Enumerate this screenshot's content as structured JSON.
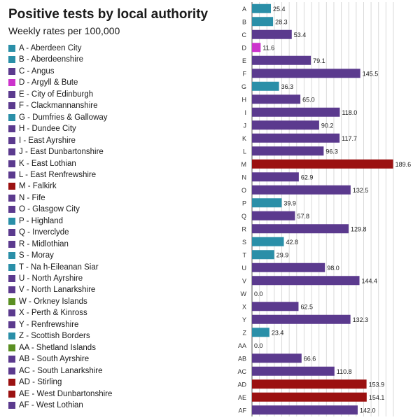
{
  "header": {
    "title": "Positive tests by local authority",
    "subtitle": "Weekly rates per 100,000"
  },
  "colors": {
    "purple": "#5b3a8e",
    "teal": "#2a8fa8",
    "magenta": "#cc33cc",
    "red": "#9b1111",
    "green": "#5a8f22",
    "gridline": "#d9d9d9",
    "axis": "#555555"
  },
  "chart_data": {
    "type": "bar",
    "orientation": "horizontal",
    "xlim": [
      0,
      190
    ],
    "grid": true,
    "categories": [
      "A",
      "B",
      "C",
      "D",
      "E",
      "F",
      "G",
      "H",
      "I",
      "J",
      "K",
      "L",
      "M",
      "N",
      "O",
      "P",
      "Q",
      "R",
      "S",
      "T",
      "U",
      "V",
      "W",
      "X",
      "Y",
      "Z",
      "AA",
      "AB",
      "AC",
      "AD",
      "AE",
      "AF"
    ],
    "values": [
      25.4,
      28.3,
      53.4,
      11.6,
      79.1,
      145.5,
      36.3,
      65.0,
      118.0,
      90.2,
      117.7,
      96.3,
      189.6,
      62.9,
      132.5,
      39.9,
      57.8,
      129.8,
      42.8,
      29.9,
      98.0,
      144.4,
      0.0,
      62.5,
      132.3,
      23.4,
      0.0,
      66.6,
      110.8,
      153.9,
      154.1,
      142.0
    ],
    "value_labels": [
      "25.4",
      "28.3",
      "53.4",
      "11.6",
      "79.1",
      "145.5",
      "36.3",
      "65.0",
      "118.0",
      "90.2",
      "117.7",
      "96.3",
      "189.6",
      "62.9",
      "132.5",
      "39.9",
      "57.8",
      "129.8",
      "42.8",
      "29.9",
      "98.0",
      "144.4",
      "0.0",
      "62.5",
      "132.3",
      "23.4",
      "0.0",
      "66.6",
      "110.8",
      "153.9",
      "154.1",
      "142.0"
    ],
    "colors": [
      "teal",
      "teal",
      "purple",
      "magenta",
      "purple",
      "purple",
      "teal",
      "purple",
      "purple",
      "purple",
      "purple",
      "purple",
      "red",
      "purple",
      "purple",
      "teal",
      "purple",
      "purple",
      "teal",
      "teal",
      "purple",
      "purple",
      "green",
      "purple",
      "purple",
      "teal",
      "green",
      "purple",
      "purple",
      "red",
      "red",
      "purple"
    ],
    "legend": [
      "A - Aberdeen City",
      "B - Aberdeenshire",
      "C - Angus",
      "D - Argyll & Bute",
      "E - City of Edinburgh",
      "F - Clackmannanshire",
      "G - Dumfries & Galloway",
      "H - Dundee City",
      "I - East Ayrshire",
      "J - East Dunbartonshire",
      "K - East Lothian",
      "L - East Renfrewshire",
      "M - Falkirk",
      "N - Fife",
      "O - Glasgow City",
      "P - Highland",
      "Q - Inverclyde",
      "R - Midlothian",
      "S - Moray",
      "T - Na h-Eileanan Siar",
      "U - North Ayrshire",
      "V - North Lanarkshire",
      "W - Orkney Islands",
      "X - Perth & Kinross",
      "Y - Renfrewshire",
      "Z - Scottish Borders",
      "AA - Shetland Islands",
      "AB - South Ayrshire",
      "AC - South Lanarkshire",
      "AD - Stirling",
      "AE - West Dunbartonshire",
      "AF - West Lothian"
    ]
  }
}
